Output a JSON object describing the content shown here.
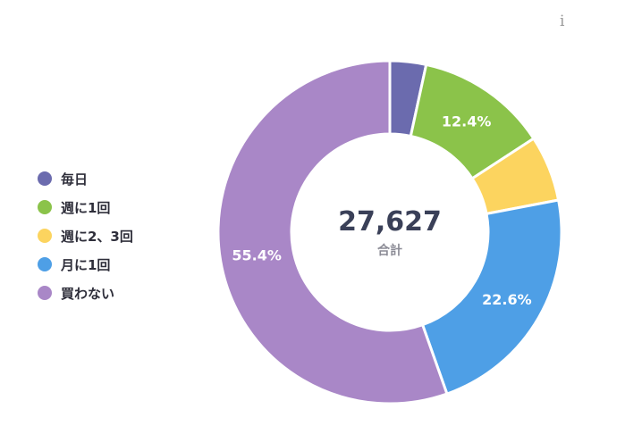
{
  "info_icon": "i",
  "chart_data": {
    "type": "pie",
    "variant": "donut",
    "legend_position": "left",
    "total_value": "27,627",
    "total_label": "合計",
    "categories": [
      "毎日",
      "週に1回",
      "週に2、3回",
      "月に1回",
      "買わない"
    ],
    "values": [
      3.4,
      12.4,
      6.2,
      22.6,
      55.4
    ],
    "value_labels": [
      "",
      "12.4%",
      "",
      "22.6%",
      "55.4%"
    ],
    "colors": [
      "#6b6bae",
      "#8bc34a",
      "#fcd45f",
      "#4e9fe6",
      "#a987c7"
    ]
  }
}
